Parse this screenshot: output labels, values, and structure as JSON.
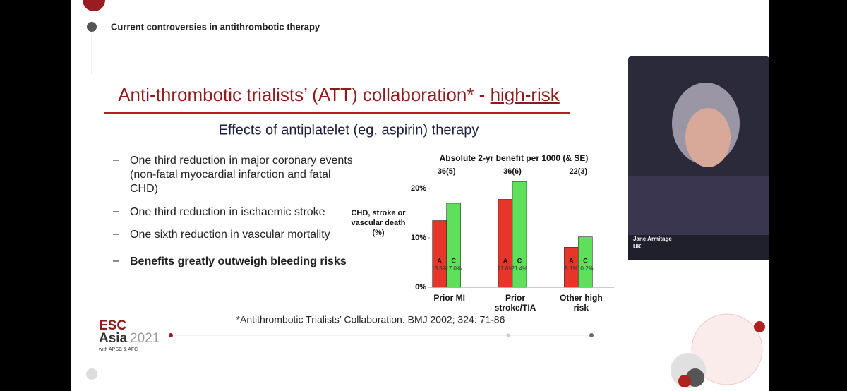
{
  "header": {
    "title": "Current controversies in antithrombotic therapy"
  },
  "slide": {
    "title": "Anti-thrombotic trialists’ (ATT) collaboration* - ",
    "title_underlined": "high-risk",
    "subtitle": "Effects of antiplatelet (eg, aspirin) therapy",
    "bullets": [
      "One third reduction in major coronary events (non-fatal myocardial infarction and fatal CHD)",
      "One third reduction in ischaemic stroke",
      "One sixth reduction in vascular mortality",
      "Benefits greatly outweigh bleeding risks"
    ],
    "footnote": "*Antithrombotic Trialists’ Collaboration. BMJ 2002; 324: 71-86",
    "logo": {
      "brand": "ESC",
      "event": "Asia",
      "year": "2021",
      "partners": "with APSC & AFC"
    }
  },
  "chart_data": {
    "type": "bar",
    "title": "Absolute 2-yr benefit per 1000 (& SE)",
    "benefit_labels": [
      "36(5)",
      "36(6)",
      "22(3)"
    ],
    "y_label": "CHD, stroke or vascular death (%)",
    "categories": [
      "Prior MI",
      "Prior stroke/TIA",
      "Other high risk"
    ],
    "series": [
      {
        "name": "A",
        "color": "#e8352a",
        "values": [
          13.5,
          17.8,
          8.1
        ],
        "value_labels": [
          "13.5%",
          "17.8%",
          "8.1%"
        ]
      },
      {
        "name": "C",
        "color": "#5ee05a",
        "values": [
          17.0,
          21.4,
          10.2
        ],
        "value_labels": [
          "17.0%",
          "21.4%",
          "10.2%"
        ]
      }
    ],
    "ylim": [
      0,
      23
    ],
    "yticks": [
      {
        "value": 0,
        "label": "0%"
      },
      {
        "value": 10,
        "label": "10%"
      },
      {
        "value": 20,
        "label": "20%"
      }
    ],
    "grid": false
  },
  "video": {
    "name": "Jane Armitage",
    "location": "UK"
  }
}
